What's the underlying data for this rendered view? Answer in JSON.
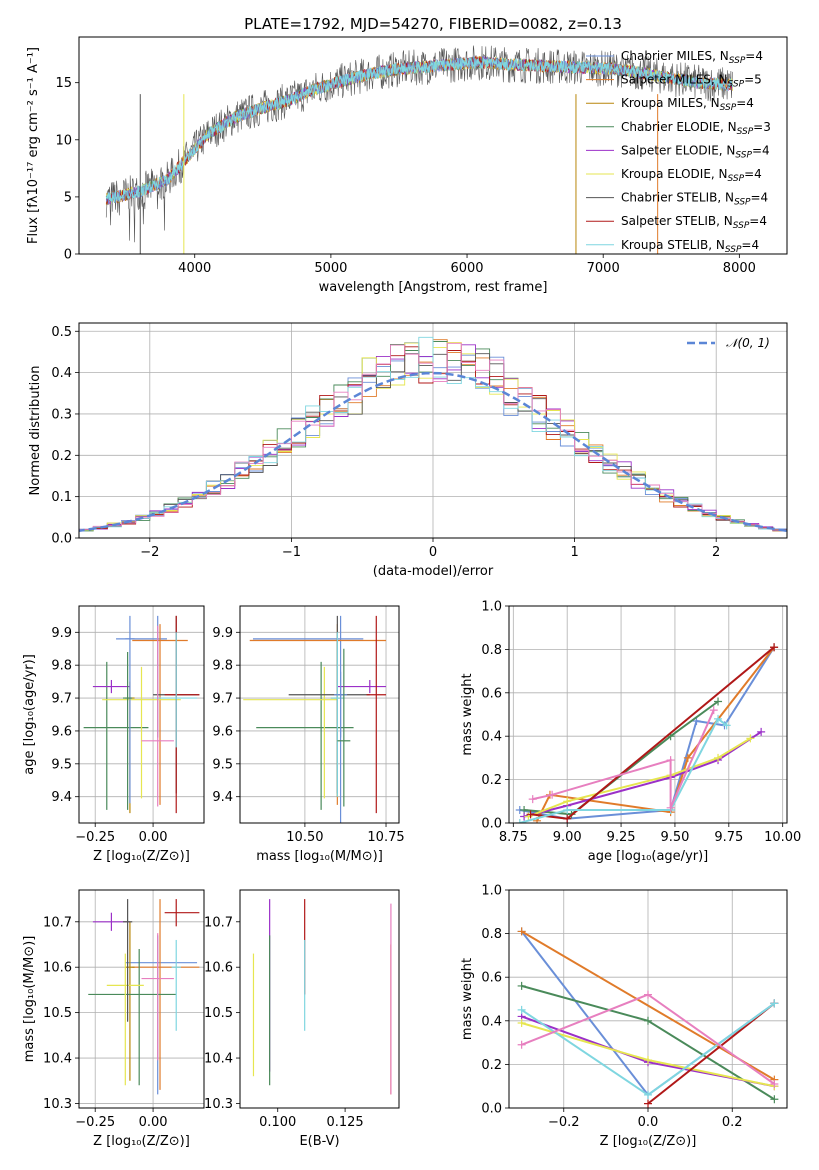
{
  "figure": {
    "title": "PLATE=1792, MJD=54270, FIBERID=0082, z=0.13"
  },
  "models": [
    {
      "name": "Chabrier MILES, N",
      "sub": "SSP",
      "suffix": "=4",
      "color": "#6a8fd8"
    },
    {
      "name": "Salpeter MILES, N",
      "sub": "SSP",
      "suffix": "=5",
      "color": "#e07b2a"
    },
    {
      "name": "Kroupa MILES, N",
      "sub": "SSP",
      "suffix": "=4",
      "color": "#b8860b"
    },
    {
      "name": "Chabrier ELODIE, N",
      "sub": "SSP",
      "suffix": "=3",
      "color": "#4a8a5a"
    },
    {
      "name": "Salpeter ELODIE, N",
      "sub": "SSP",
      "suffix": "=4",
      "color": "#9b30c8"
    },
    {
      "name": "Kroupa ELODIE, N",
      "sub": "SSP",
      "suffix": "=4",
      "color": "#e6e650"
    },
    {
      "name": "Chabrier STELIB, N",
      "sub": "SSP",
      "suffix": "=4",
      "color": "#555555"
    },
    {
      "name": "Salpeter STELIB, N",
      "sub": "SSP",
      "suffix": "=4",
      "color": "#b01818"
    },
    {
      "name": "Kroupa STELIB, N",
      "sub": "SSP",
      "suffix": "=4",
      "color": "#7fd6e0"
    }
  ],
  "chart_data": [
    {
      "id": "spectrum",
      "type": "line",
      "xlabel": "wavelength [Angstrom, rest frame]",
      "ylabel": "Flux [fλ10⁻¹⁷ erg cm⁻² s⁻¹ A⁻¹]",
      "xlim": [
        3150,
        8350
      ],
      "ylim": [
        0,
        19
      ],
      "xticks": [
        "4000",
        "5000",
        "6000",
        "7000",
        "8000"
      ],
      "yticks": [
        "0",
        "5",
        "10",
        "15"
      ],
      "grid": false,
      "legend": "top-right",
      "spectrum_x_range": [
        3350,
        7950
      ],
      "spectrum_shape": [
        [
          3350,
          4.8
        ],
        [
          3600,
          5.5
        ],
        [
          3800,
          6.5
        ],
        [
          3950,
          8.5
        ],
        [
          4100,
          10.5
        ],
        [
          4300,
          12.0
        ],
        [
          4500,
          12.8
        ],
        [
          4700,
          13.5
        ],
        [
          4900,
          14.5
        ],
        [
          5100,
          15.2
        ],
        [
          5300,
          15.8
        ],
        [
          5500,
          16.2
        ],
        [
          5700,
          16.4
        ],
        [
          5900,
          16.6
        ],
        [
          6100,
          16.8
        ],
        [
          6300,
          16.6
        ],
        [
          6500,
          16.5
        ],
        [
          6700,
          16.4
        ],
        [
          6900,
          16.3
        ],
        [
          7100,
          16.2
        ],
        [
          7300,
          15.8
        ],
        [
          7500,
          15.4
        ],
        [
          7700,
          15.0
        ],
        [
          7950,
          14.8
        ]
      ]
    },
    {
      "id": "residuals",
      "type": "bar",
      "xlabel": "(data-model)/error",
      "ylabel": "Normed distribution",
      "xlim": [
        -2.5,
        2.5
      ],
      "ylim": [
        0,
        0.52
      ],
      "xticks": [
        "−2",
        "−1",
        "0",
        "1",
        "2"
      ],
      "yticks": [
        "0.0",
        "0.1",
        "0.2",
        "0.3",
        "0.4",
        "0.5"
      ],
      "grid": true,
      "legend": "top-right",
      "legend_label": "𝒩(0, 1)",
      "gaussian": {
        "mu": 0,
        "sigma": 1,
        "color": "#5b86d6"
      },
      "bin_width": 0.1
    },
    {
      "id": "age-vs-Z",
      "type": "scatter",
      "xlabel": "Z [log₁₀(Z/Z⊙)]",
      "ylabel": "age  [log₁₀(age/yr)]",
      "xlim": [
        -0.32,
        0.22
      ],
      "ylim": [
        9.32,
        9.98
      ],
      "xticks": [
        "−0.25",
        "0.00"
      ],
      "yticks": [
        "9.4",
        "9.5",
        "9.6",
        "9.7",
        "9.8",
        "9.9"
      ],
      "grid": true,
      "points": [
        {
          "model": 0,
          "x": 0.02,
          "y": 9.88,
          "xerr": [
            0.18,
            0.04
          ],
          "yerr": [
            0.3,
            0.07
          ]
        },
        {
          "model": 1,
          "x": 0.03,
          "y": 9.875,
          "xerr": [
            0.12,
            0.12
          ],
          "yerr": [
            0.5,
            0.05
          ]
        },
        {
          "model": 2,
          "x": -0.1,
          "y": 9.7,
          "xerr": [
            0.02,
            0.02
          ],
          "yerr": [
            0.35,
            0.05
          ]
        },
        {
          "model": 3,
          "x": -0.2,
          "y": 9.61,
          "xerr": [
            0.1,
            0.18
          ],
          "yerr": [
            0.25,
            0.2
          ]
        },
        {
          "model": 4,
          "x": -0.18,
          "y": 9.735,
          "xerr": [
            0.08,
            0.08
          ],
          "yerr": [
            0.02,
            0.02
          ]
        },
        {
          "model": 5,
          "x": -0.05,
          "y": 9.695,
          "xerr": [
            0.17,
            0.17
          ],
          "yerr": [
            0.3,
            0.1
          ]
        },
        {
          "model": 6,
          "x": 0.1,
          "y": 9.71,
          "xerr": [
            0.1,
            0.1
          ],
          "yerr": [
            0.3,
            0.24
          ]
        },
        {
          "model": 7,
          "x": 0.1,
          "y": 9.71,
          "xerr": [
            0.05,
            0.1
          ],
          "yerr": [
            0.36,
            0.24
          ]
        },
        {
          "model": 8,
          "x": 0.1,
          "y": 9.7,
          "xerr": [
            0.09,
            0.09
          ],
          "yerr": [
            0.15,
            0.2
          ]
        },
        {
          "model": 0,
          "x": -0.1,
          "y": 9.88,
          "xerr": [
            0.02,
            0.02
          ],
          "yerr": [
            0.5,
            0.07
          ]
        },
        {
          "model": 9,
          "x": 0.02,
          "y": 9.57,
          "xerr": [
            0.07,
            0.07
          ],
          "yerr": [
            0.2,
            0.35
          ]
        },
        {
          "model": 3,
          "x": -0.11,
          "y": 9.7,
          "xerr": [
            0.02,
            0.02
          ],
          "yerr": [
            0.34,
            0.14
          ]
        }
      ]
    },
    {
      "id": "age-vs-mass",
      "type": "scatter",
      "xlabel": "mass [log₁₀(M/M⊙)]",
      "ylabel": "",
      "xlim": [
        10.3,
        10.79
      ],
      "ylim": [
        9.32,
        9.98
      ],
      "xticks": [
        "10.50",
        "10.75"
      ],
      "yticks": [
        "9.4",
        "9.5",
        "9.6",
        "9.7",
        "9.8",
        "9.9"
      ],
      "grid": true,
      "points": [
        {
          "model": 0,
          "x": 10.61,
          "y": 9.88,
          "xerr": [
            0.27,
            0.07
          ],
          "yerr": [
            0.3,
            0.07
          ]
        },
        {
          "model": 1,
          "x": 10.6,
          "y": 9.875,
          "xerr": [
            0.27,
            0.15
          ],
          "yerr": [
            0.5,
            0.05
          ]
        },
        {
          "model": 2,
          "x": 10.6,
          "y": 9.7,
          "xerr": [
            0.02,
            0.02
          ],
          "yerr": [
            0.3,
            0.18
          ]
        },
        {
          "model": 3,
          "x": 10.55,
          "y": 9.61,
          "xerr": [
            0.2,
            0.1
          ],
          "yerr": [
            0.25,
            0.2
          ]
        },
        {
          "model": 4,
          "x": 10.7,
          "y": 9.735,
          "xerr": [
            0.1,
            0.05
          ],
          "yerr": [
            0.02,
            0.02
          ]
        },
        {
          "model": 5,
          "x": 10.56,
          "y": 9.695,
          "xerr": [
            0.25,
            0.04
          ],
          "yerr": [
            0.3,
            0.1
          ]
        },
        {
          "model": 6,
          "x": 10.6,
          "y": 9.71,
          "xerr": [
            0.15,
            0.1
          ],
          "yerr": [
            0.3,
            0.24
          ]
        },
        {
          "model": 7,
          "x": 10.72,
          "y": 9.71,
          "xerr": [
            0.03,
            0.03
          ],
          "yerr": [
            0.36,
            0.24
          ]
        },
        {
          "model": 8,
          "x": 10.6,
          "y": 9.7,
          "xerr": [
            0.02,
            0.02
          ],
          "yerr": [
            0.3,
            0.2
          ]
        },
        {
          "model": 0,
          "x": 10.61,
          "y": 9.71,
          "xerr": [
            0.02,
            0.02
          ],
          "yerr": [
            0.5,
            0.07
          ]
        },
        {
          "model": 3,
          "x": 10.62,
          "y": 9.57,
          "xerr": [
            0.02,
            0.02
          ],
          "yerr": [
            0.2,
            0.28
          ]
        }
      ]
    },
    {
      "id": "weight-vs-age",
      "type": "line",
      "xlabel": "age  [log₁₀(age/yr)]",
      "ylabel": "mass weight",
      "xlim": [
        8.73,
        10.02
      ],
      "ylim": [
        0,
        1
      ],
      "xticks": [
        "8.75",
        "9.00",
        "9.25",
        "9.50",
        "9.75",
        "10.00"
      ],
      "yticks": [
        "0.0",
        "0.2",
        "0.4",
        "0.6",
        "0.8",
        "1.0"
      ],
      "grid": true,
      "series": [
        {
          "model": 0,
          "x": [
            8.78,
            9.0,
            9.48,
            9.6,
            9.73,
            9.96
          ],
          "y": [
            0.06,
            0.02,
            0.06,
            0.47,
            0.45,
            0.81
          ]
        },
        {
          "model": 1,
          "x": [
            8.86,
            8.92,
            9.48,
            9.56,
            9.96
          ],
          "y": [
            0.01,
            0.13,
            0.05,
            0.3,
            0.81
          ]
        },
        {
          "model": 3,
          "x": [
            8.8,
            9.02,
            9.48,
            9.7
          ],
          "y": [
            0.06,
            0.04,
            0.4,
            0.56
          ]
        },
        {
          "model": 4,
          "x": [
            8.8,
            9.0,
            9.48,
            9.7,
            9.9
          ],
          "y": [
            0.03,
            0.08,
            0.21,
            0.29,
            0.42
          ]
        },
        {
          "model": 5,
          "x": [
            8.82,
            9.0,
            9.48,
            9.7,
            9.85
          ],
          "y": [
            0.03,
            0.1,
            0.22,
            0.3,
            0.39
          ]
        },
        {
          "model": 7,
          "x": [
            8.83,
            9.0,
            9.96
          ],
          "y": [
            0.04,
            0.02,
            0.81
          ]
        },
        {
          "model": 8,
          "x": [
            8.78,
            9.0,
            9.48,
            9.7,
            9.74
          ],
          "y": [
            0.0,
            0.06,
            0.06,
            0.48,
            0.45
          ]
        },
        {
          "model": 9,
          "x": [
            8.84,
            8.93,
            9.48,
            9.48,
            9.68
          ],
          "y": [
            0.11,
            0.13,
            0.29,
            0.07,
            0.52
          ]
        }
      ]
    },
    {
      "id": "mass-vs-Z",
      "type": "scatter",
      "xlabel": "Z [log₁₀(Z/Z⊙)]",
      "ylabel": "mass [log₁₀(M/M⊙)]",
      "xlim": [
        -0.32,
        0.22
      ],
      "ylim": [
        10.29,
        10.77
      ],
      "xticks": [
        "−0.25",
        "0.00"
      ],
      "yticks": [
        "10.3",
        "10.4",
        "10.5",
        "10.6",
        "10.7"
      ],
      "grid": true,
      "points": [
        {
          "model": 0,
          "x": 0.02,
          "y": 10.61,
          "xerr": [
            0.14,
            0.17
          ],
          "yerr": [
            0.29,
            0.06
          ]
        },
        {
          "model": 1,
          "x": 0.03,
          "y": 10.6,
          "xerr": [
            0.12,
            0.17
          ],
          "yerr": [
            0.27,
            0.15
          ]
        },
        {
          "model": 2,
          "x": -0.1,
          "y": 10.6,
          "xerr": [
            0.02,
            0.02
          ],
          "yerr": [
            0.25,
            0.1
          ]
        },
        {
          "model": 3,
          "x": -0.06,
          "y": 10.54,
          "xerr": [
            0.22,
            0.16
          ],
          "yerr": [
            0.2,
            0.1
          ]
        },
        {
          "model": 4,
          "x": -0.18,
          "y": 10.7,
          "xerr": [
            0.08,
            0.08
          ],
          "yerr": [
            0.02,
            0.02
          ]
        },
        {
          "model": 5,
          "x": -0.12,
          "y": 10.56,
          "xerr": [
            0.08,
            0.08
          ],
          "yerr": [
            0.22,
            0.07
          ]
        },
        {
          "model": 6,
          "x": -0.11,
          "y": 10.7,
          "xerr": [
            0.02,
            0.02
          ],
          "yerr": [
            0.22,
            0.05
          ]
        },
        {
          "model": 7,
          "x": 0.1,
          "y": 10.72,
          "xerr": [
            0.05,
            0.1
          ],
          "yerr": [
            0.03,
            0.03
          ]
        },
        {
          "model": 8,
          "x": 0.1,
          "y": 10.6,
          "xerr": [
            0.02,
            0.02
          ],
          "yerr": [
            0.14,
            0.06
          ]
        },
        {
          "model": 9,
          "x": 0.02,
          "y": 10.575,
          "xerr": [
            0.07,
            0.07
          ],
          "yerr": [
            0.18,
            0.1
          ]
        }
      ]
    },
    {
      "id": "mass-vs-EBV",
      "type": "scatter",
      "xlabel": "E(B-V)",
      "ylabel": "",
      "xlim": [
        0.086,
        0.145
      ],
      "ylim": [
        10.29,
        10.77
      ],
      "xticks": [
        "0.100",
        "0.125"
      ],
      "yticks": [
        "10.3",
        "10.4",
        "10.5",
        "10.6",
        "10.7"
      ],
      "grid": false,
      "points": [
        {
          "model": 5,
          "x": 0.091,
          "y": 10.5,
          "yerr": [
            0.14,
            0.13
          ]
        },
        {
          "model": 4,
          "x": 0.097,
          "y": 10.62,
          "yerr": [
            0.25,
            0.13
          ]
        },
        {
          "model": 3,
          "x": 0.097,
          "y": 10.55,
          "yerr": [
            0.21,
            0.12
          ]
        },
        {
          "model": 7,
          "x": 0.11,
          "y": 10.62,
          "yerr": [
            0.08,
            0.13
          ]
        },
        {
          "model": 8,
          "x": 0.11,
          "y": 10.56,
          "yerr": [
            0.1,
            0.1
          ]
        },
        {
          "model": 1,
          "x": 0.142,
          "y": 10.55,
          "yerr": [
            0.23,
            0.1
          ]
        },
        {
          "model": 9,
          "x": 0.142,
          "y": 10.6,
          "yerr": [
            0.28,
            0.14
          ]
        }
      ]
    },
    {
      "id": "weight-vs-Z",
      "type": "line",
      "xlabel": "Z [log₁₀(Z/Z⊙)]",
      "ylabel": "mass weight",
      "xlim": [
        -0.33,
        0.33
      ],
      "ylim": [
        0,
        1
      ],
      "xticks": [
        "−0.2",
        "0.0",
        "0.2"
      ],
      "yticks": [
        "0.0",
        "0.2",
        "0.4",
        "0.6",
        "0.8",
        "1.0"
      ],
      "grid": true,
      "series": [
        {
          "model": 0,
          "x": [
            -0.3,
            0.0,
            0.3
          ],
          "y": [
            0.81,
            0.06,
            0.48
          ]
        },
        {
          "model": 1,
          "x": [
            -0.3,
            0.3
          ],
          "y": [
            0.81,
            0.13
          ]
        },
        {
          "model": 3,
          "x": [
            -0.3,
            0.0,
            0.3
          ],
          "y": [
            0.56,
            0.4,
            0.04
          ]
        },
        {
          "model": 4,
          "x": [
            -0.3,
            0.0,
            0.3
          ],
          "y": [
            0.42,
            0.21,
            0.1
          ]
        },
        {
          "model": 5,
          "x": [
            -0.3,
            0.0,
            0.3
          ],
          "y": [
            0.39,
            0.22,
            0.1
          ]
        },
        {
          "model": 7,
          "x": [
            0.0,
            0.3
          ],
          "y": [
            0.02,
            0.48
          ]
        },
        {
          "model": 8,
          "x": [
            -0.3,
            0.0,
            0.3
          ],
          "y": [
            0.45,
            0.06,
            0.48
          ]
        },
        {
          "model": 9,
          "x": [
            -0.3,
            0.0,
            0.3
          ],
          "y": [
            0.29,
            0.52,
            0.11
          ]
        }
      ]
    }
  ],
  "extra_color": "#e77fbf"
}
